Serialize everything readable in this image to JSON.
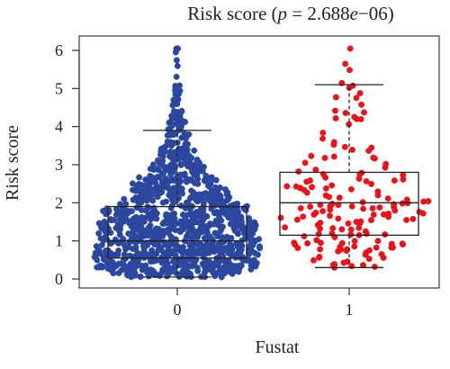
{
  "chart_data": {
    "type": "beeswarm-boxplot",
    "title": {
      "prefix": "Risk score (",
      "p_symbol": "p",
      "equals": " = 2.688",
      "e_symbol": "e",
      "suffix": "−06)"
    },
    "xlabel": "Fustat",
    "ylabel": "Risk score",
    "ylim": [
      0,
      6.3
    ],
    "yticks": [
      0,
      1,
      2,
      3,
      4,
      5,
      6
    ],
    "categories": [
      "0",
      "1"
    ],
    "groups": [
      {
        "category": "0",
        "color": "#2B479E",
        "n_points": 1100,
        "min": 0.05,
        "max": 6.05,
        "box": {
          "whisker_low": 0.05,
          "q1": 0.55,
          "median": 1.0,
          "q3": 1.9,
          "whisker_high": 3.9
        },
        "density_profile": [
          [
            0.05,
            1.2
          ],
          [
            0.3,
            1.7
          ],
          [
            0.6,
            1.7
          ],
          [
            1.0,
            1.7
          ],
          [
            1.5,
            1.6
          ],
          [
            1.9,
            1.5
          ],
          [
            2.0,
            1.15
          ],
          [
            2.5,
            0.95
          ],
          [
            3.0,
            0.5
          ],
          [
            3.5,
            0.3
          ],
          [
            4.0,
            0.2
          ],
          [
            4.5,
            0.1
          ],
          [
            5.0,
            0.06
          ],
          [
            5.5,
            0.04
          ],
          [
            6.0,
            0.02
          ]
        ]
      },
      {
        "category": "1",
        "color": "#E8141A",
        "n_points": 160,
        "min": 0.3,
        "max": 6.05,
        "box": {
          "whisker_low": 0.3,
          "q1": 1.15,
          "median": 2.0,
          "q3": 2.8,
          "whisker_high": 5.1
        },
        "density_profile": [
          [
            0.3,
            0.3
          ],
          [
            0.8,
            0.45
          ],
          [
            1.2,
            0.5
          ],
          [
            1.6,
            0.55
          ],
          [
            2.0,
            0.6
          ],
          [
            2.5,
            0.5
          ],
          [
            3.0,
            0.35
          ],
          [
            3.5,
            0.25
          ],
          [
            4.0,
            0.18
          ],
          [
            4.5,
            0.12
          ],
          [
            5.0,
            0.08
          ],
          [
            5.5,
            0.05
          ],
          [
            6.05,
            0.03
          ]
        ]
      }
    ]
  }
}
